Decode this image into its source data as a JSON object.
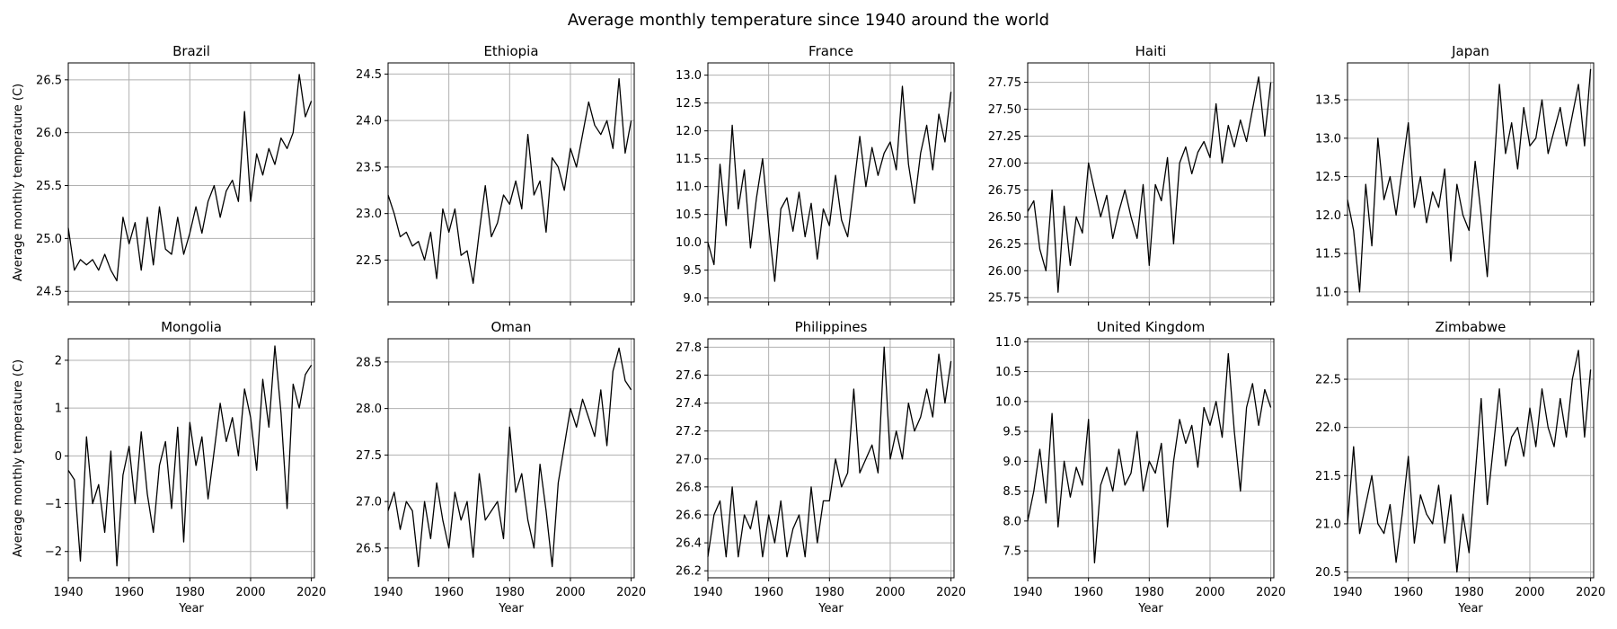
{
  "figure": {
    "title": "Average monthly temperature since 1940 around the world",
    "xlabel": "Year",
    "ylabel": "Average monthly temperature (C)",
    "x_ticks": [
      1940,
      1960,
      1980,
      2000,
      2020
    ],
    "xlim": [
      1940,
      2021
    ],
    "grid": true,
    "line_color": "#000000",
    "grid_color": "#b0b0b0"
  },
  "chart_data": [
    {
      "type": "line",
      "title": "Brazil",
      "ylim": [
        24.4,
        26.66
      ],
      "y_ticks": [
        "24.5",
        "25.0",
        "25.5",
        "26.0",
        "26.5"
      ],
      "x": [
        1940,
        1942,
        1944,
        1946,
        1948,
        1950,
        1952,
        1954,
        1956,
        1958,
        1960,
        1962,
        1964,
        1966,
        1968,
        1970,
        1972,
        1974,
        1976,
        1978,
        1980,
        1982,
        1984,
        1986,
        1988,
        1990,
        1992,
        1994,
        1996,
        1998,
        2000,
        2002,
        2004,
        2006,
        2008,
        2010,
        2012,
        2014,
        2016,
        2018,
        2020
      ],
      "y": [
        25.1,
        24.7,
        24.8,
        24.75,
        24.8,
        24.7,
        24.85,
        24.7,
        24.6,
        25.2,
        24.95,
        25.15,
        24.7,
        25.2,
        24.75,
        25.3,
        24.9,
        24.85,
        25.2,
        24.85,
        25.05,
        25.3,
        25.05,
        25.35,
        25.5,
        25.2,
        25.45,
        25.55,
        25.35,
        26.2,
        25.35,
        25.8,
        25.6,
        25.85,
        25.7,
        25.95,
        25.85,
        26.0,
        26.55,
        26.15,
        26.3
      ]
    },
    {
      "type": "line",
      "title": "Ethiopia",
      "ylim": [
        22.05,
        24.62
      ],
      "y_ticks": [
        "22.5",
        "23.0",
        "23.5",
        "24.0",
        "24.5"
      ],
      "x": [
        1940,
        1942,
        1944,
        1946,
        1948,
        1950,
        1952,
        1954,
        1956,
        1958,
        1960,
        1962,
        1964,
        1966,
        1968,
        1970,
        1972,
        1974,
        1976,
        1978,
        1980,
        1982,
        1984,
        1986,
        1988,
        1990,
        1992,
        1994,
        1996,
        1998,
        2000,
        2002,
        2004,
        2006,
        2008,
        2010,
        2012,
        2014,
        2016,
        2018,
        2020
      ],
      "y": [
        23.2,
        23.0,
        22.75,
        22.8,
        22.65,
        22.7,
        22.5,
        22.8,
        22.3,
        23.05,
        22.8,
        23.05,
        22.55,
        22.6,
        22.25,
        22.8,
        23.3,
        22.75,
        22.9,
        23.2,
        23.1,
        23.35,
        23.05,
        23.85,
        23.2,
        23.35,
        22.8,
        23.6,
        23.5,
        23.25,
        23.7,
        23.5,
        23.85,
        24.2,
        23.95,
        23.85,
        24.0,
        23.7,
        24.45,
        23.65,
        24.0
      ]
    },
    {
      "type": "line",
      "title": "France",
      "ylim": [
        8.93,
        13.22
      ],
      "y_ticks": [
        "9.0",
        "9.5",
        "10.0",
        "10.5",
        "11.0",
        "11.5",
        "12.0",
        "12.5",
        "13.0"
      ],
      "x": [
        1940,
        1942,
        1944,
        1946,
        1948,
        1950,
        1952,
        1954,
        1956,
        1958,
        1960,
        1962,
        1964,
        1966,
        1968,
        1970,
        1972,
        1974,
        1976,
        1978,
        1980,
        1982,
        1984,
        1986,
        1988,
        1990,
        1992,
        1994,
        1996,
        1998,
        2000,
        2002,
        2004,
        2006,
        2008,
        2010,
        2012,
        2014,
        2016,
        2018,
        2020
      ],
      "y": [
        10.0,
        9.6,
        11.4,
        10.3,
        12.1,
        10.6,
        11.3,
        9.9,
        10.8,
        11.5,
        10.3,
        9.3,
        10.6,
        10.8,
        10.2,
        10.9,
        10.1,
        10.7,
        9.7,
        10.6,
        10.3,
        11.2,
        10.4,
        10.1,
        11.0,
        11.9,
        11.0,
        11.7,
        11.2,
        11.6,
        11.8,
        11.3,
        12.8,
        11.4,
        10.7,
        11.6,
        12.1,
        11.3,
        12.3,
        11.8,
        12.7
      ]
    },
    {
      "type": "line",
      "title": "Haiti",
      "ylim": [
        25.71,
        27.93
      ],
      "y_ticks": [
        "25.75",
        "26.00",
        "26.25",
        "26.50",
        "26.75",
        "27.00",
        "27.25",
        "27.50",
        "27.75"
      ],
      "x": [
        1940,
        1942,
        1944,
        1946,
        1948,
        1950,
        1952,
        1954,
        1956,
        1958,
        1960,
        1962,
        1964,
        1966,
        1968,
        1970,
        1972,
        1974,
        1976,
        1978,
        1980,
        1982,
        1984,
        1986,
        1988,
        1990,
        1992,
        1994,
        1996,
        1998,
        2000,
        2002,
        2004,
        2006,
        2008,
        2010,
        2012,
        2014,
        2016,
        2018,
        2020
      ],
      "y": [
        26.55,
        26.65,
        26.2,
        26.0,
        26.75,
        25.8,
        26.6,
        26.05,
        26.5,
        26.35,
        27.0,
        26.75,
        26.5,
        26.7,
        26.3,
        26.55,
        26.75,
        26.5,
        26.3,
        26.8,
        26.05,
        26.8,
        26.65,
        27.05,
        26.25,
        27.0,
        27.15,
        26.9,
        27.1,
        27.2,
        27.05,
        27.55,
        27.0,
        27.35,
        27.15,
        27.4,
        27.2,
        27.5,
        27.8,
        27.25,
        27.75
      ]
    },
    {
      "type": "line",
      "title": "Japan",
      "ylim": [
        10.87,
        13.98
      ],
      "y_ticks": [
        "11.0",
        "11.5",
        "12.0",
        "12.5",
        "13.0",
        "13.5"
      ],
      "x": [
        1940,
        1942,
        1944,
        1946,
        1948,
        1950,
        1952,
        1954,
        1956,
        1958,
        1960,
        1962,
        1964,
        1966,
        1968,
        1970,
        1972,
        1974,
        1976,
        1978,
        1980,
        1982,
        1984,
        1986,
        1988,
        1990,
        1992,
        1994,
        1996,
        1998,
        2000,
        2002,
        2004,
        2006,
        2008,
        2010,
        2012,
        2014,
        2016,
        2018,
        2020
      ],
      "y": [
        12.2,
        11.8,
        11.0,
        12.4,
        11.6,
        13.0,
        12.2,
        12.5,
        12.0,
        12.6,
        13.2,
        12.1,
        12.5,
        11.9,
        12.3,
        12.1,
        12.6,
        11.4,
        12.4,
        12.0,
        11.8,
        12.7,
        12.0,
        11.2,
        12.5,
        13.7,
        12.8,
        13.2,
        12.6,
        13.4,
        12.9,
        13.0,
        13.5,
        12.8,
        13.1,
        13.4,
        12.9,
        13.3,
        13.7,
        12.9,
        13.9
      ]
    },
    {
      "type": "line",
      "title": "Mongolia",
      "ylim": [
        -2.55,
        2.45
      ],
      "y_ticks": [
        "−2",
        "−1",
        "0",
        "1",
        "2"
      ],
      "x": [
        1940,
        1942,
        1944,
        1946,
        1948,
        1950,
        1952,
        1954,
        1956,
        1958,
        1960,
        1962,
        1964,
        1966,
        1968,
        1970,
        1972,
        1974,
        1976,
        1978,
        1980,
        1982,
        1984,
        1986,
        1988,
        1990,
        1992,
        1994,
        1996,
        1998,
        2000,
        2002,
        2004,
        2006,
        2008,
        2010,
        2012,
        2014,
        2016,
        2018,
        2020
      ],
      "y": [
        -0.3,
        -0.5,
        -2.2,
        0.4,
        -1.0,
        -0.6,
        -1.6,
        0.1,
        -2.3,
        -0.4,
        0.2,
        -1.0,
        0.5,
        -0.8,
        -1.6,
        -0.2,
        0.3,
        -1.1,
        0.6,
        -1.8,
        0.7,
        -0.2,
        0.4,
        -0.9,
        0.1,
        1.1,
        0.3,
        0.8,
        0.0,
        1.4,
        0.8,
        -0.3,
        1.6,
        0.6,
        2.3,
        0.9,
        -1.1,
        1.5,
        1.0,
        1.7,
        1.9
      ]
    },
    {
      "type": "line",
      "title": "Oman",
      "ylim": [
        26.18,
        28.75
      ],
      "y_ticks": [
        "26.5",
        "27.0",
        "27.5",
        "28.0",
        "28.5"
      ],
      "x": [
        1940,
        1942,
        1944,
        1946,
        1948,
        1950,
        1952,
        1954,
        1956,
        1958,
        1960,
        1962,
        1964,
        1966,
        1968,
        1970,
        1972,
        1974,
        1976,
        1978,
        1980,
        1982,
        1984,
        1986,
        1988,
        1990,
        1992,
        1994,
        1996,
        1998,
        2000,
        2002,
        2004,
        2006,
        2008,
        2010,
        2012,
        2014,
        2016,
        2018,
        2020
      ],
      "y": [
        26.9,
        27.1,
        26.7,
        27.0,
        26.9,
        26.3,
        27.0,
        26.6,
        27.2,
        26.8,
        26.5,
        27.1,
        26.8,
        27.0,
        26.4,
        27.3,
        26.8,
        26.9,
        27.0,
        26.6,
        27.8,
        27.1,
        27.3,
        26.8,
        26.5,
        27.4,
        26.9,
        26.3,
        27.2,
        27.6,
        28.0,
        27.8,
        28.1,
        27.9,
        27.7,
        28.2,
        27.6,
        28.4,
        28.65,
        28.3,
        28.2
      ]
    },
    {
      "type": "line",
      "title": "Philippines",
      "ylim": [
        26.15,
        27.86
      ],
      "y_ticks": [
        "26.2",
        "26.4",
        "26.6",
        "26.8",
        "27.0",
        "27.2",
        "27.4",
        "27.6",
        "27.8"
      ],
      "x": [
        1940,
        1942,
        1944,
        1946,
        1948,
        1950,
        1952,
        1954,
        1956,
        1958,
        1960,
        1962,
        1964,
        1966,
        1968,
        1970,
        1972,
        1974,
        1976,
        1978,
        1980,
        1982,
        1984,
        1986,
        1988,
        1990,
        1992,
        1994,
        1996,
        1998,
        2000,
        2002,
        2004,
        2006,
        2008,
        2010,
        2012,
        2014,
        2016,
        2018,
        2020
      ],
      "y": [
        26.3,
        26.6,
        26.7,
        26.3,
        26.8,
        26.3,
        26.6,
        26.5,
        26.7,
        26.3,
        26.6,
        26.4,
        26.7,
        26.3,
        26.5,
        26.6,
        26.3,
        26.8,
        26.4,
        26.7,
        26.7,
        27.0,
        26.8,
        26.9,
        27.5,
        26.9,
        27.0,
        27.1,
        26.9,
        27.8,
        27.0,
        27.2,
        27.0,
        27.4,
        27.2,
        27.3,
        27.5,
        27.3,
        27.75,
        27.4,
        27.7
      ]
    },
    {
      "type": "line",
      "title": "United Kingdom",
      "ylim": [
        7.05,
        11.05
      ],
      "y_ticks": [
        "7.5",
        "8.0",
        "8.5",
        "9.0",
        "9.5",
        "10.0",
        "10.5",
        "11.0"
      ],
      "x": [
        1940,
        1942,
        1944,
        1946,
        1948,
        1950,
        1952,
        1954,
        1956,
        1958,
        1960,
        1962,
        1964,
        1966,
        1968,
        1970,
        1972,
        1974,
        1976,
        1978,
        1980,
        1982,
        1984,
        1986,
        1988,
        1990,
        1992,
        1994,
        1996,
        1998,
        2000,
        2002,
        2004,
        2006,
        2008,
        2010,
        2012,
        2014,
        2016,
        2018,
        2020
      ],
      "y": [
        8.0,
        8.5,
        9.2,
        8.3,
        9.8,
        7.9,
        9.0,
        8.4,
        8.9,
        8.6,
        9.7,
        7.3,
        8.6,
        8.9,
        8.5,
        9.2,
        8.6,
        8.8,
        9.5,
        8.5,
        9.0,
        8.8,
        9.3,
        7.9,
        9.0,
        9.7,
        9.3,
        9.6,
        8.9,
        9.9,
        9.6,
        10.0,
        9.4,
        10.8,
        9.5,
        8.5,
        9.9,
        10.3,
        9.6,
        10.2,
        9.9
      ]
    },
    {
      "type": "line",
      "title": "Zimbabwe",
      "ylim": [
        20.44,
        22.92
      ],
      "y_ticks": [
        "20.5",
        "21.0",
        "21.5",
        "22.0",
        "22.5"
      ],
      "x": [
        1940,
        1942,
        1944,
        1946,
        1948,
        1950,
        1952,
        1954,
        1956,
        1958,
        1960,
        1962,
        1964,
        1966,
        1968,
        1970,
        1972,
        1974,
        1976,
        1978,
        1980,
        1982,
        1984,
        1986,
        1988,
        1990,
        1992,
        1994,
        1996,
        1998,
        2000,
        2002,
        2004,
        2006,
        2008,
        2010,
        2012,
        2014,
        2016,
        2018,
        2020
      ],
      "y": [
        21.0,
        21.8,
        20.9,
        21.2,
        21.5,
        21.0,
        20.9,
        21.2,
        20.6,
        21.1,
        21.7,
        20.8,
        21.3,
        21.1,
        21.0,
        21.4,
        20.8,
        21.3,
        20.5,
        21.1,
        20.7,
        21.5,
        22.3,
        21.2,
        21.8,
        22.4,
        21.6,
        21.9,
        22.0,
        21.7,
        22.2,
        21.8,
        22.4,
        22.0,
        21.8,
        22.3,
        21.9,
        22.5,
        22.8,
        21.9,
        22.6
      ]
    }
  ]
}
